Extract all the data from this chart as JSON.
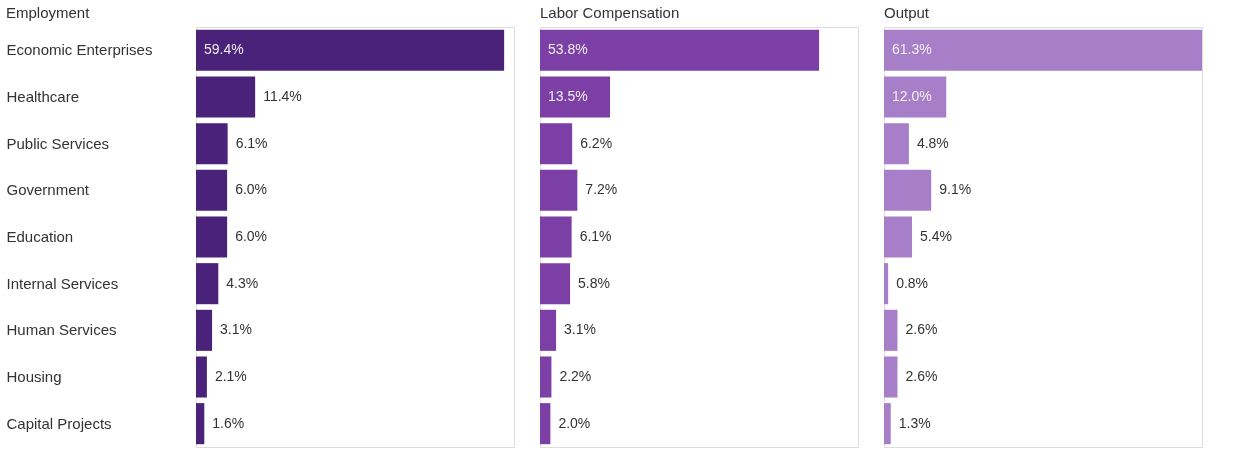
{
  "chart_data": [
    {
      "type": "bar",
      "orientation": "horizontal",
      "title": "Employment",
      "tick_labels": "y",
      "categories": [
        "Economic Enterprises",
        "Healthcare",
        "Public Services",
        "Government",
        "Education",
        "Internal Services",
        "Human Services",
        "Housing",
        "Capital Projects"
      ],
      "series": [
        {
          "color": "#4a2279",
          "values": [
            59.4,
            11.4,
            6.1,
            6.0,
            6.0,
            4.3,
            3.1,
            2.1,
            1.6
          ],
          "value_labels": [
            "59.4%",
            "11.4%",
            "6.1%",
            "6.0%",
            "6.0%",
            "4.3%",
            "3.1%",
            "2.1%",
            "1.6%"
          ]
        }
      ]
    },
    {
      "type": "bar",
      "orientation": "horizontal",
      "title": "Labor Compensation",
      "tick_labels": false,
      "categories": [
        null,
        null,
        null,
        null,
        null,
        null,
        null,
        null,
        null
      ],
      "series": [
        {
          "color": "#7b3fa6",
          "values": [
            53.8,
            13.5,
            6.2,
            7.2,
            6.1,
            5.8,
            3.1,
            2.2,
            2.0
          ],
          "value_labels": [
            "53.8%",
            "13.5%",
            "6.2%",
            "7.2%",
            "6.1%",
            "5.8%",
            "3.1%",
            "2.2%",
            "2.0%"
          ]
        }
      ]
    },
    {
      "type": "bar",
      "orientation": "horizontal",
      "title": "Output",
      "tick_labels": false,
      "categories": [
        null,
        null,
        null,
        null,
        null,
        null,
        null,
        null,
        null
      ],
      "series": [
        {
          "color": "#a77fc9",
          "values": [
            61.3,
            12.0,
            4.8,
            9.1,
            5.4,
            0.8,
            2.6,
            2.6,
            1.3
          ],
          "value_labels": [
            "61.3%",
            "12.0%",
            "4.8%",
            "9.1%",
            "5.4%",
            "0.8%",
            "2.6%",
            "2.6%",
            "1.3%"
          ]
        }
      ]
    }
  ]
}
